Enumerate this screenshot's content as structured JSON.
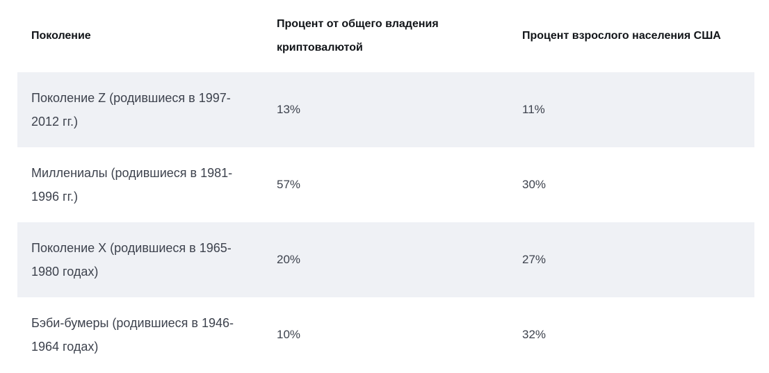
{
  "table": {
    "headers": [
      "Поколение",
      "Процент от общего владения криптовалютой",
      "Процент взрослого населения США"
    ],
    "rows": [
      {
        "generation": "Поколение Z (родившиеся в 1997-2012 гг.)",
        "crypto_ownership": "13%",
        "us_adult_population": "11%"
      },
      {
        "generation": "Миллениалы (родившиеся в 1981-1996 гг.)",
        "crypto_ownership": "57%",
        "us_adult_population": "30%"
      },
      {
        "generation": "Поколение X (родившиеся в 1965-1980 годах)",
        "crypto_ownership": "20%",
        "us_adult_population": "27%"
      },
      {
        "generation": "Бэби-бумеры (родившиеся в 1946-1964 годах)",
        "crypto_ownership": "10%",
        "us_adult_population": "32%"
      }
    ]
  }
}
